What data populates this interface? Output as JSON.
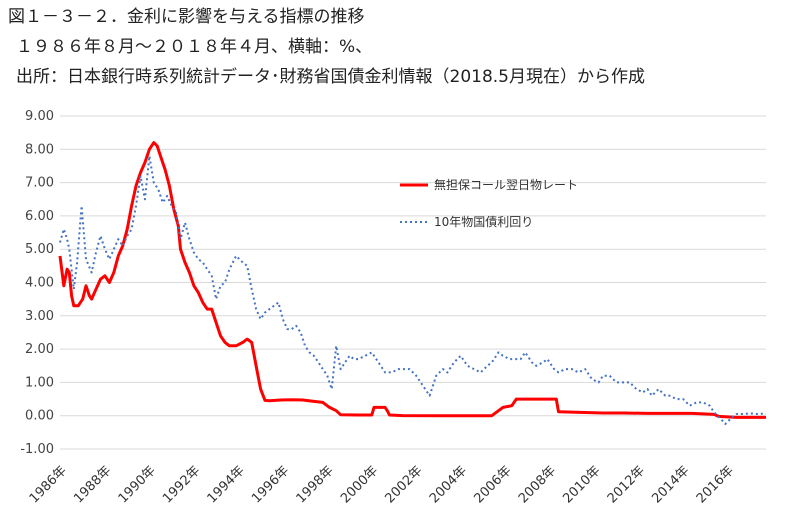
{
  "title_lines": [
    "図１－３－２．金利に影響を与える指標の推移",
    "１９８６年８月～２０１８年４月、横軸：%、",
    "出所：日本銀行時系列統計データ･財務省国債金利情報（2018.5月現在）から作成"
  ],
  "chart_data": {
    "type": "line",
    "xlabel": "",
    "ylabel": "",
    "xlim": [
      1986.58,
      2018.33
    ],
    "ylim": [
      -1.0,
      9.0
    ],
    "y_ticks": [
      "-1.00",
      "0.00",
      "1.00",
      "2.00",
      "3.00",
      "4.00",
      "5.00",
      "6.00",
      "7.00",
      "8.00",
      "9.00"
    ],
    "x_ticks": [
      "1986年",
      "1988年",
      "1990年",
      "1992年",
      "1994年",
      "1996年",
      "1998年",
      "2000年",
      "2002年",
      "2004年",
      "2006年",
      "2008年",
      "2010年",
      "2012年",
      "2014年",
      "2016年"
    ],
    "grid": "horizontal",
    "legend_position": "right",
    "series": [
      {
        "name": "無担保コール翌日物レート",
        "color": "#ff0000",
        "style": "solid",
        "points": [
          [
            1986.58,
            4.8
          ],
          [
            1986.75,
            3.9
          ],
          [
            1986.9,
            4.4
          ],
          [
            1987.0,
            4.3
          ],
          [
            1987.1,
            3.6
          ],
          [
            1987.2,
            3.3
          ],
          [
            1987.4,
            3.3
          ],
          [
            1987.6,
            3.5
          ],
          [
            1987.75,
            3.9
          ],
          [
            1987.9,
            3.6
          ],
          [
            1988.0,
            3.5
          ],
          [
            1988.2,
            3.8
          ],
          [
            1988.4,
            4.1
          ],
          [
            1988.6,
            4.2
          ],
          [
            1988.8,
            4.0
          ],
          [
            1989.0,
            4.3
          ],
          [
            1989.2,
            4.8
          ],
          [
            1989.4,
            5.1
          ],
          [
            1989.6,
            5.6
          ],
          [
            1989.8,
            6.3
          ],
          [
            1990.0,
            6.9
          ],
          [
            1990.2,
            7.3
          ],
          [
            1990.4,
            7.6
          ],
          [
            1990.6,
            8.0
          ],
          [
            1990.8,
            8.2
          ],
          [
            1990.95,
            8.1
          ],
          [
            1991.1,
            7.8
          ],
          [
            1991.3,
            7.4
          ],
          [
            1991.5,
            6.9
          ],
          [
            1991.7,
            6.2
          ],
          [
            1991.9,
            5.7
          ],
          [
            1992.0,
            5.0
          ],
          [
            1992.2,
            4.6
          ],
          [
            1992.4,
            4.3
          ],
          [
            1992.6,
            3.9
          ],
          [
            1992.8,
            3.7
          ],
          [
            1993.0,
            3.4
          ],
          [
            1993.2,
            3.2
          ],
          [
            1993.4,
            3.2
          ],
          [
            1993.6,
            2.8
          ],
          [
            1993.8,
            2.4
          ],
          [
            1994.0,
            2.2
          ],
          [
            1994.2,
            2.1
          ],
          [
            1994.5,
            2.1
          ],
          [
            1994.8,
            2.2
          ],
          [
            1995.0,
            2.3
          ],
          [
            1995.2,
            2.2
          ],
          [
            1995.4,
            1.5
          ],
          [
            1995.6,
            0.8
          ],
          [
            1995.8,
            0.46
          ],
          [
            1996.0,
            0.45
          ],
          [
            1996.5,
            0.47
          ],
          [
            1997.0,
            0.48
          ],
          [
            1997.5,
            0.47
          ],
          [
            1998.0,
            0.43
          ],
          [
            1998.4,
            0.4
          ],
          [
            1998.7,
            0.25
          ],
          [
            1999.0,
            0.15
          ],
          [
            1999.2,
            0.03
          ],
          [
            2000.0,
            0.02
          ],
          [
            2000.6,
            0.02
          ],
          [
            2000.7,
            0.25
          ],
          [
            2001.2,
            0.25
          ],
          [
            2001.3,
            0.15
          ],
          [
            2001.4,
            0.02
          ],
          [
            2002.0,
            0.002
          ],
          [
            2004.0,
            0.001
          ],
          [
            2006.0,
            0.001
          ],
          [
            2006.5,
            0.25
          ],
          [
            2006.9,
            0.3
          ],
          [
            2007.1,
            0.5
          ],
          [
            2007.5,
            0.5
          ],
          [
            2008.0,
            0.5
          ],
          [
            2008.9,
            0.5
          ],
          [
            2009.0,
            0.12
          ],
          [
            2010.0,
            0.1
          ],
          [
            2011.0,
            0.08
          ],
          [
            2012.0,
            0.08
          ],
          [
            2013.0,
            0.07
          ],
          [
            2014.0,
            0.07
          ],
          [
            2015.0,
            0.07
          ],
          [
            2016.0,
            0.04
          ],
          [
            2016.2,
            -0.02
          ],
          [
            2017.0,
            -0.05
          ],
          [
            2018.33,
            -0.05
          ]
        ]
      },
      {
        "name": "10年物国債利回り",
        "color": "#4472c4",
        "style": "dotted",
        "points": [
          [
            1986.58,
            5.2
          ],
          [
            1986.75,
            5.6
          ],
          [
            1986.9,
            5.3
          ],
          [
            1987.0,
            5.0
          ],
          [
            1987.2,
            3.8
          ],
          [
            1987.35,
            4.6
          ],
          [
            1987.55,
            6.3
          ],
          [
            1987.75,
            4.7
          ],
          [
            1988.0,
            4.3
          ],
          [
            1988.2,
            4.9
          ],
          [
            1988.4,
            5.4
          ],
          [
            1988.6,
            5.0
          ],
          [
            1988.8,
            4.7
          ],
          [
            1989.0,
            5.0
          ],
          [
            1989.2,
            5.3
          ],
          [
            1989.4,
            5.1
          ],
          [
            1989.6,
            5.4
          ],
          [
            1989.8,
            5.6
          ],
          [
            1990.0,
            6.3
          ],
          [
            1990.2,
            7.2
          ],
          [
            1990.4,
            6.5
          ],
          [
            1990.6,
            7.8
          ],
          [
            1990.8,
            7.0
          ],
          [
            1991.0,
            6.8
          ],
          [
            1991.2,
            6.4
          ],
          [
            1991.4,
            6.6
          ],
          [
            1991.6,
            6.3
          ],
          [
            1991.8,
            6.1
          ],
          [
            1992.0,
            5.3
          ],
          [
            1992.2,
            5.8
          ],
          [
            1992.4,
            5.3
          ],
          [
            1992.6,
            4.9
          ],
          [
            1992.8,
            4.7
          ],
          [
            1993.0,
            4.6
          ],
          [
            1993.2,
            4.4
          ],
          [
            1993.4,
            4.2
          ],
          [
            1993.6,
            3.5
          ],
          [
            1993.8,
            3.9
          ],
          [
            1994.0,
            4.0
          ],
          [
            1994.2,
            4.4
          ],
          [
            1994.5,
            4.8
          ],
          [
            1994.8,
            4.6
          ],
          [
            1995.0,
            4.5
          ],
          [
            1995.2,
            3.8
          ],
          [
            1995.4,
            3.2
          ],
          [
            1995.6,
            2.9
          ],
          [
            1995.8,
            3.1
          ],
          [
            1996.0,
            3.2
          ],
          [
            1996.2,
            3.3
          ],
          [
            1996.4,
            3.4
          ],
          [
            1996.6,
            2.9
          ],
          [
            1996.8,
            2.6
          ],
          [
            1997.0,
            2.6
          ],
          [
            1997.2,
            2.7
          ],
          [
            1997.4,
            2.5
          ],
          [
            1997.6,
            2.1
          ],
          [
            1997.8,
            1.9
          ],
          [
            1998.0,
            1.8
          ],
          [
            1998.2,
            1.6
          ],
          [
            1998.4,
            1.4
          ],
          [
            1998.6,
            1.2
          ],
          [
            1998.8,
            0.8
          ],
          [
            1999.0,
            2.1
          ],
          [
            1999.2,
            1.4
          ],
          [
            1999.4,
            1.6
          ],
          [
            1999.6,
            1.8
          ],
          [
            1999.8,
            1.7
          ],
          [
            2000.0,
            1.7
          ],
          [
            2000.3,
            1.8
          ],
          [
            2000.6,
            1.9
          ],
          [
            2000.9,
            1.6
          ],
          [
            2001.2,
            1.3
          ],
          [
            2001.5,
            1.3
          ],
          [
            2001.8,
            1.4
          ],
          [
            2002.0,
            1.4
          ],
          [
            2002.3,
            1.4
          ],
          [
            2002.6,
            1.2
          ],
          [
            2002.9,
            0.9
          ],
          [
            2003.2,
            0.6
          ],
          [
            2003.5,
            1.2
          ],
          [
            2003.8,
            1.4
          ],
          [
            2004.0,
            1.3
          ],
          [
            2004.3,
            1.6
          ],
          [
            2004.6,
            1.8
          ],
          [
            2004.9,
            1.5
          ],
          [
            2005.2,
            1.4
          ],
          [
            2005.5,
            1.3
          ],
          [
            2005.8,
            1.5
          ],
          [
            2006.0,
            1.6
          ],
          [
            2006.3,
            1.9
          ],
          [
            2006.5,
            1.8
          ],
          [
            2006.8,
            1.7
          ],
          [
            2007.0,
            1.7
          ],
          [
            2007.3,
            1.7
          ],
          [
            2007.5,
            1.9
          ],
          [
            2007.8,
            1.6
          ],
          [
            2008.0,
            1.5
          ],
          [
            2008.3,
            1.6
          ],
          [
            2008.5,
            1.7
          ],
          [
            2008.8,
            1.4
          ],
          [
            2009.0,
            1.3
          ],
          [
            2009.3,
            1.4
          ],
          [
            2009.6,
            1.4
          ],
          [
            2009.9,
            1.3
          ],
          [
            2010.2,
            1.4
          ],
          [
            2010.5,
            1.1
          ],
          [
            2010.8,
            1.0
          ],
          [
            2011.0,
            1.2
          ],
          [
            2011.3,
            1.2
          ],
          [
            2011.6,
            1.0
          ],
          [
            2011.9,
            1.0
          ],
          [
            2012.2,
            1.0
          ],
          [
            2012.5,
            0.8
          ],
          [
            2012.8,
            0.7
          ],
          [
            2013.0,
            0.8
          ],
          [
            2013.2,
            0.6
          ],
          [
            2013.5,
            0.8
          ],
          [
            2013.8,
            0.6
          ],
          [
            2014.0,
            0.6
          ],
          [
            2014.3,
            0.5
          ],
          [
            2014.6,
            0.5
          ],
          [
            2014.9,
            0.3
          ],
          [
            2015.2,
            0.4
          ],
          [
            2015.5,
            0.4
          ],
          [
            2015.8,
            0.3
          ],
          [
            2016.0,
            0.1
          ],
          [
            2016.3,
            -0.1
          ],
          [
            2016.5,
            -0.25
          ],
          [
            2016.8,
            -0.05
          ],
          [
            2017.0,
            0.05
          ],
          [
            2017.3,
            0.05
          ],
          [
            2017.6,
            0.07
          ],
          [
            2017.9,
            0.05
          ],
          [
            2018.1,
            0.06
          ],
          [
            2018.33,
            0.05
          ]
        ]
      }
    ]
  }
}
